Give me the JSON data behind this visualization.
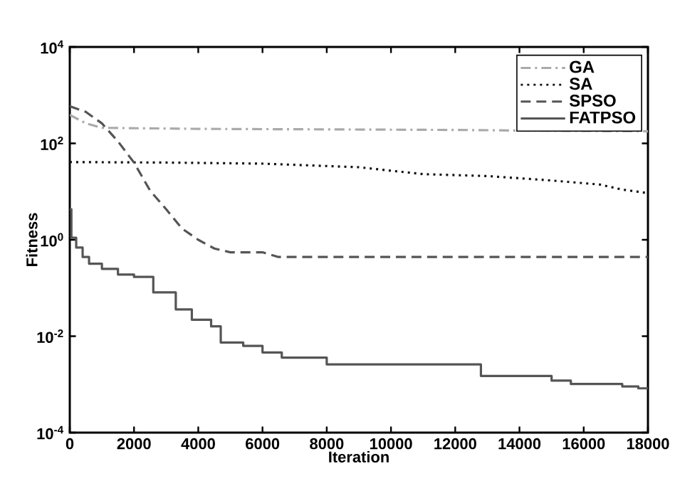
{
  "chart_data": {
    "type": "line",
    "xlabel": "Iteration",
    "ylabel": "Fitness",
    "log": "y",
    "xlim": [
      0,
      18000
    ],
    "ylim": [
      0.0001,
      10000
    ],
    "xticks": [
      0,
      2000,
      4000,
      6000,
      8000,
      10000,
      12000,
      14000,
      16000,
      18000
    ],
    "yticks": [
      {
        "value": 0.0001,
        "label": "10$^{-4}$"
      },
      {
        "value": 0.01,
        "label": "10$^{-2}$"
      },
      {
        "value": 1,
        "label": "10$^{0}$"
      },
      {
        "value": 100,
        "label": "10$^{2}$"
      },
      {
        "value": 10000,
        "label": "10$^{4}$"
      }
    ],
    "grid": false,
    "legend": "top right",
    "marker": "none",
    "series": [
      {
        "name": "GA",
        "color": "#aaaaaa",
        "line_style": "dashdot",
        "x": [
          0,
          500,
          1000,
          4000,
          8000,
          12000,
          16000,
          18000
        ],
        "values": [
          390,
          260,
          210,
          200,
          195,
          190,
          180,
          178
        ]
      },
      {
        "name": "SA",
        "color": "#111111",
        "line_style": "dotted",
        "x": [
          0,
          3000,
          6000,
          9000,
          11000,
          13000,
          15000,
          16500,
          17200,
          18000
        ],
        "values": [
          41,
          40,
          38,
          32,
          23,
          21,
          17,
          14,
          11,
          9.3
        ]
      },
      {
        "name": "SPSO",
        "color": "#555555",
        "line_style": "dashed",
        "x": [
          0,
          500,
          1000,
          1500,
          2000,
          2500,
          3000,
          3500,
          4000,
          4500,
          5000,
          6000,
          6500,
          18000
        ],
        "values": [
          590,
          450,
          260,
          110,
          40,
          10.5,
          4.3,
          1.7,
          1,
          0.66,
          0.55,
          0.55,
          0.44,
          0.44
        ]
      },
      {
        "name": "FATPSO",
        "color": "#555555",
        "type": "step",
        "line_style": "solid",
        "x": [
          0,
          50,
          200,
          400,
          600,
          1000,
          1500,
          2000,
          2600,
          3300,
          3800,
          4400,
          4700,
          5400,
          6000,
          6600,
          8000,
          12800,
          15000,
          15600,
          17200,
          17700,
          18000
        ],
        "values": [
          4.3,
          1.1,
          0.69,
          0.44,
          0.32,
          0.25,
          0.19,
          0.17,
          0.081,
          0.036,
          0.022,
          0.016,
          0.0074,
          0.0063,
          0.0046,
          0.0036,
          0.0026,
          0.0015,
          0.0012,
          0.00102,
          0.00091,
          0.00083,
          0.00083
        ]
      }
    ]
  }
}
